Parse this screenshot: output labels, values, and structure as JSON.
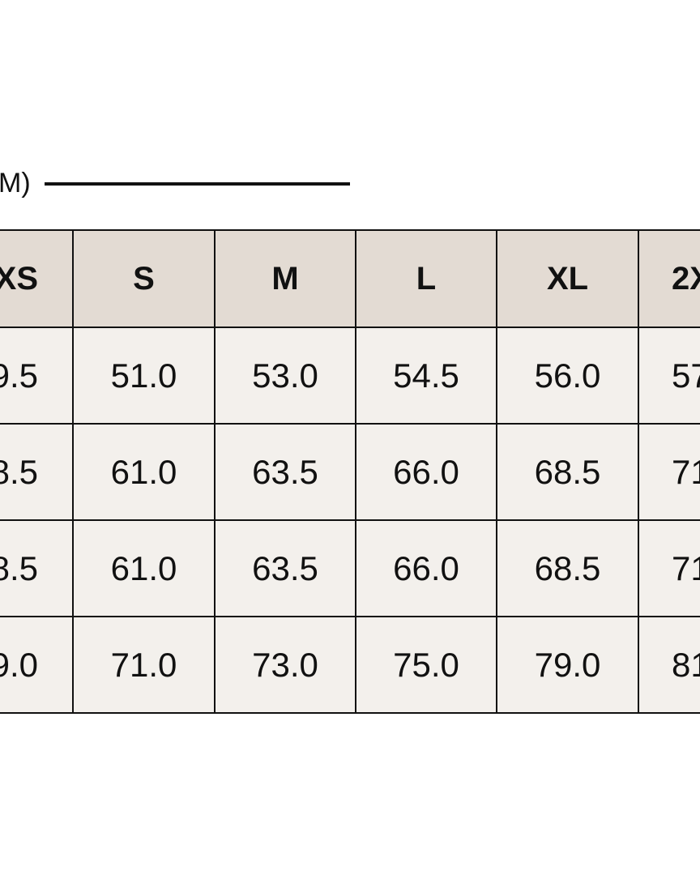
{
  "table": {
    "title": "M)",
    "header": [
      "XS",
      "S",
      "M",
      "L",
      "XL",
      "2X"
    ],
    "rows": [
      [
        "9.5",
        "51.0",
        "53.0",
        "54.5",
        "56.0",
        "57"
      ],
      [
        "8.5",
        "61.0",
        "63.5",
        "66.0",
        "68.5",
        "71"
      ],
      [
        "8.5",
        "61.0",
        "63.5",
        "66.0",
        "68.5",
        "71"
      ],
      [
        "9.0",
        "71.0",
        "73.0",
        "75.0",
        "79.0",
        "81"
      ]
    ]
  }
}
